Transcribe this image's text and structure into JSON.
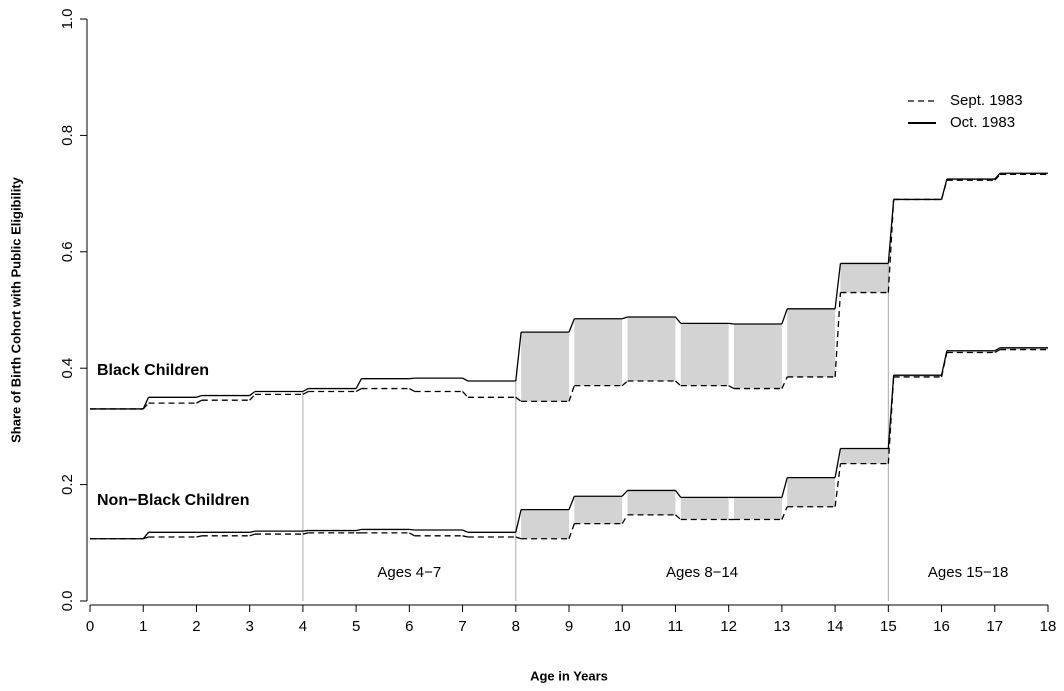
{
  "chart_data": {
    "type": "step",
    "xlabel": "Age in Years",
    "ylabel": "Share of Birth Cohort with Public Eligibility",
    "xlim": [
      0,
      18
    ],
    "xticks": [
      0,
      1,
      2,
      3,
      4,
      5,
      6,
      7,
      8,
      9,
      10,
      11,
      12,
      13,
      14,
      15,
      16,
      17,
      18
    ],
    "ylim": [
      0,
      1
    ],
    "yticks": [
      {
        "value": 0,
        "label": "0.0"
      },
      {
        "value": 0.2,
        "label": "0.2"
      },
      {
        "value": 0.4,
        "label": "0.4"
      },
      {
        "value": 0.6,
        "label": "0.6"
      },
      {
        "value": 0.8,
        "label": "0.8"
      },
      {
        "value": 1,
        "label": "1.0"
      }
    ],
    "x": [
      0,
      1,
      2,
      3,
      4,
      5,
      6,
      7,
      8,
      9,
      10,
      11,
      12,
      13,
      14,
      15,
      16,
      17
    ],
    "legend": [
      {
        "name": "Sept. 1983",
        "dash": "6 4"
      },
      {
        "name": "Oct. 1983",
        "dash": "none"
      }
    ],
    "legend_position": "top-right",
    "shade_color": "#d3d3d3",
    "groups": [
      {
        "label": "Black Children",
        "series": [
          {
            "values": [
              0.33,
              0.34,
              0.345,
              0.355,
              0.36,
              0.365,
              0.36,
              0.35,
              0.343,
              0.37,
              0.378,
              0.37,
              0.365,
              0.385,
              0.53,
              0.69,
              0.723,
              0.733
            ]
          },
          {
            "values": [
              0.33,
              0.35,
              0.353,
              0.36,
              0.365,
              0.382,
              0.383,
              0.378,
              0.462,
              0.485,
              0.488,
              0.477,
              0.476,
              0.502,
              0.58,
              0.69,
              0.725,
              0.735
            ]
          }
        ]
      },
      {
        "label": "Non−Black Children",
        "series": [
          {
            "values": [
              0.107,
              0.11,
              0.112,
              0.115,
              0.117,
              0.117,
              0.112,
              0.11,
              0.107,
              0.133,
              0.148,
              0.14,
              0.14,
              0.162,
              0.236,
              0.385,
              0.427,
              0.432
            ]
          },
          {
            "values": [
              0.107,
              0.118,
              0.118,
              0.12,
              0.121,
              0.123,
              0.122,
              0.118,
              0.157,
              0.18,
              0.19,
              0.178,
              0.178,
              0.212,
              0.262,
              0.388,
              0.43,
              0.435
            ]
          }
        ]
      }
    ],
    "regions": [
      {
        "label": "Ages 4−7",
        "from": 4,
        "to": 8
      },
      {
        "label": "Ages 8−14",
        "from": 8,
        "to": 15
      },
      {
        "label": "Ages 15−18",
        "from": 15,
        "to": 18
      }
    ]
  }
}
